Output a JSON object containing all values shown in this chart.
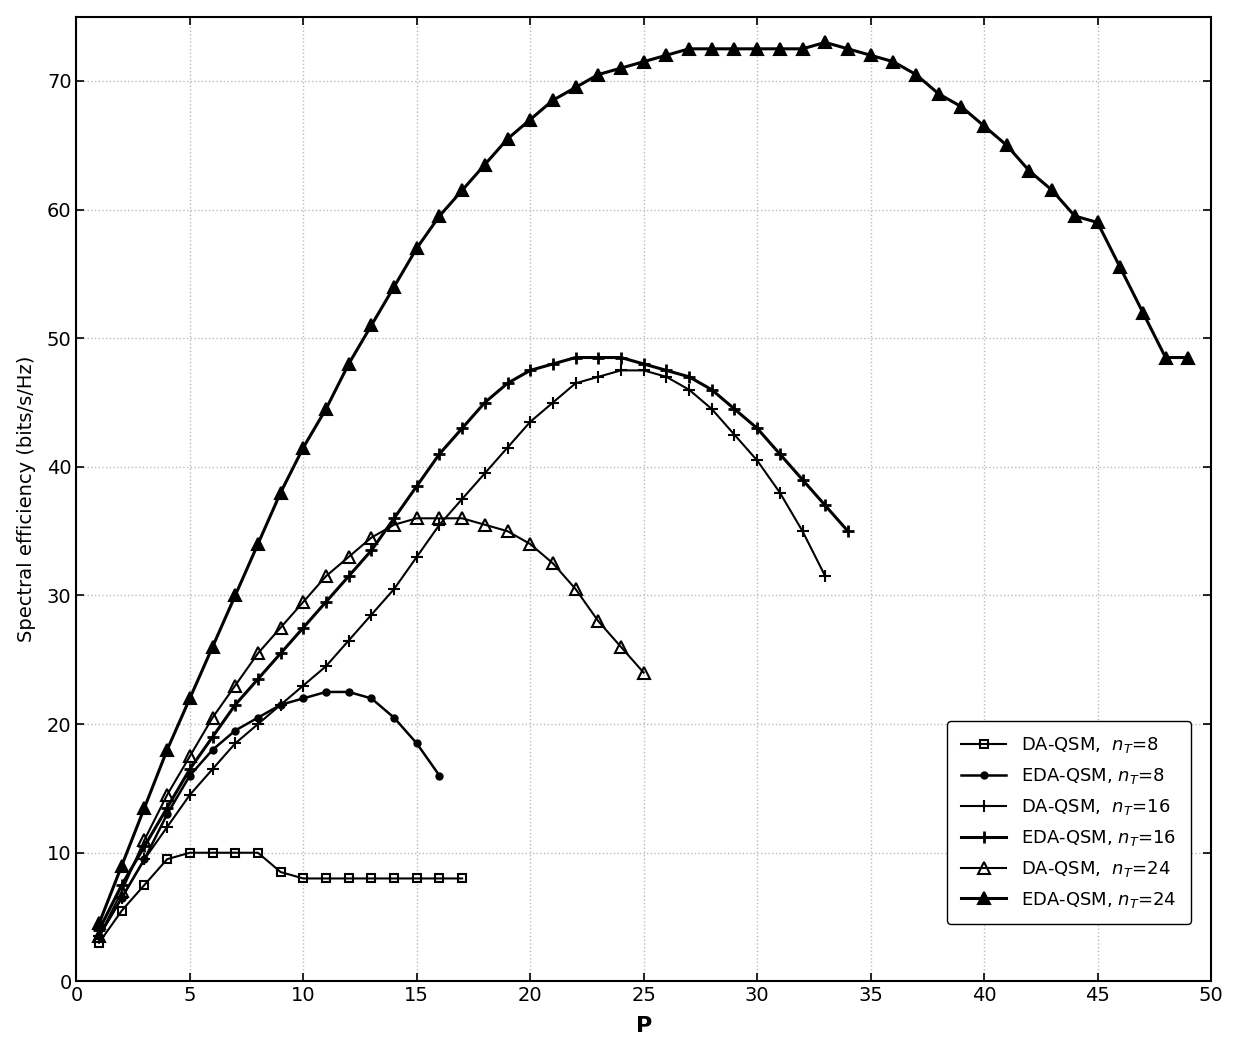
{
  "ylabel": "Spectral efficiency (bits/s/Hz)",
  "xlabel": "P",
  "xlim": [
    0,
    50
  ],
  "ylim": [
    0,
    75
  ],
  "xticks": [
    0,
    5,
    10,
    15,
    20,
    25,
    30,
    35,
    40,
    45,
    50
  ],
  "yticks": [
    0,
    10,
    20,
    30,
    40,
    50,
    60,
    70
  ],
  "grid_color": "#bbbbbb",
  "background_color": "#ffffff",
  "series": [
    {
      "label": "DA-QSM,  $n_T$=8",
      "marker": "s",
      "markersize": 6,
      "linewidth": 1.5,
      "color": "#000000",
      "fillstyle": "none",
      "markeredgewidth": 1.5,
      "x": [
        1,
        2,
        3,
        4,
        5,
        6,
        7,
        8,
        9,
        10,
        11,
        12,
        13,
        14,
        15,
        16,
        17
      ],
      "y": [
        3.0,
        5.5,
        7.5,
        9.5,
        10.0,
        10.0,
        10.0,
        10.0,
        8.5,
        8.0,
        8.0,
        8.0,
        8.0,
        8.0,
        8.0,
        8.0,
        8.0
      ]
    },
    {
      "label": "EDA-QSM, $n_T$=8",
      "marker": "o",
      "markersize": 5,
      "linewidth": 1.8,
      "color": "#000000",
      "fillstyle": "full",
      "markeredgewidth": 1.0,
      "x": [
        1,
        2,
        3,
        4,
        5,
        6,
        7,
        8,
        9,
        10,
        11,
        12,
        13,
        14,
        15,
        16
      ],
      "y": [
        3.5,
        6.5,
        9.5,
        13.0,
        16.0,
        18.0,
        19.5,
        20.5,
        21.5,
        22.0,
        22.5,
        22.5,
        22.0,
        20.5,
        18.5,
        16.0
      ]
    },
    {
      "label": "DA-QSM,  $n_T$=16",
      "marker": "+",
      "markersize": 8,
      "linewidth": 1.5,
      "color": "#000000",
      "fillstyle": "full",
      "markeredgewidth": 1.5,
      "x": [
        1,
        2,
        3,
        4,
        5,
        6,
        7,
        8,
        9,
        10,
        11,
        12,
        13,
        14,
        15,
        16,
        17,
        18,
        19,
        20,
        21,
        22,
        23,
        24,
        25,
        26,
        27,
        28,
        29,
        30,
        31,
        32,
        33
      ],
      "y": [
        3.5,
        6.5,
        9.5,
        12.0,
        14.5,
        16.5,
        18.5,
        20.0,
        21.5,
        23.0,
        24.5,
        26.5,
        28.5,
        30.5,
        33.0,
        35.5,
        37.5,
        39.5,
        41.5,
        43.5,
        45.0,
        46.5,
        47.0,
        47.5,
        47.5,
        47.0,
        46.0,
        44.5,
        42.5,
        40.5,
        38.0,
        35.0,
        31.5
      ]
    },
    {
      "label": "EDA-QSM, $n_T$=16",
      "marker": "+",
      "markersize": 8,
      "linewidth": 2.2,
      "color": "#000000",
      "fillstyle": "full",
      "markeredgewidth": 2.0,
      "x": [
        1,
        2,
        3,
        4,
        5,
        6,
        7,
        8,
        9,
        10,
        11,
        12,
        13,
        14,
        15,
        16,
        17,
        18,
        19,
        20,
        21,
        22,
        23,
        24,
        25,
        26,
        27,
        28,
        29,
        30,
        31,
        32,
        33,
        34
      ],
      "y": [
        4.0,
        7.5,
        10.5,
        13.5,
        16.5,
        19.0,
        21.5,
        23.5,
        25.5,
        27.5,
        29.5,
        31.5,
        33.5,
        36.0,
        38.5,
        41.0,
        43.0,
        45.0,
        46.5,
        47.5,
        48.0,
        48.5,
        48.5,
        48.5,
        48.0,
        47.5,
        47.0,
        46.0,
        44.5,
        43.0,
        41.0,
        39.0,
        37.0,
        35.0
      ]
    },
    {
      "label": "DA-QSM,  $n_T$=24",
      "marker": "^",
      "markersize": 8,
      "linewidth": 1.5,
      "color": "#000000",
      "fillstyle": "none",
      "markeredgewidth": 1.5,
      "x": [
        1,
        2,
        3,
        4,
        5,
        6,
        7,
        8,
        9,
        10,
        11,
        12,
        13,
        14,
        15,
        16,
        17,
        18,
        19,
        20,
        21,
        22,
        23,
        24,
        25
      ],
      "y": [
        3.5,
        7.0,
        11.0,
        14.5,
        17.5,
        20.5,
        23.0,
        25.5,
        27.5,
        29.5,
        31.5,
        33.0,
        34.5,
        35.5,
        36.0,
        36.0,
        36.0,
        35.5,
        35.0,
        34.0,
        32.5,
        30.5,
        28.0,
        26.0,
        24.0
      ]
    },
    {
      "label": "EDA-QSM, $n_T$=24",
      "marker": "^",
      "markersize": 8,
      "linewidth": 2.2,
      "color": "#000000",
      "fillstyle": "full",
      "markeredgewidth": 1.5,
      "x": [
        1,
        2,
        3,
        4,
        5,
        6,
        7,
        8,
        9,
        10,
        11,
        12,
        13,
        14,
        15,
        16,
        17,
        18,
        19,
        20,
        21,
        22,
        23,
        24,
        25,
        26,
        27,
        28,
        29,
        30,
        31,
        32,
        33,
        34,
        35,
        36,
        37,
        38,
        39,
        40,
        41,
        42,
        43,
        44,
        45,
        46,
        47,
        48,
        49
      ],
      "y": [
        4.5,
        9.0,
        13.5,
        18.0,
        22.0,
        26.0,
        30.0,
        34.0,
        38.0,
        41.5,
        44.5,
        48.0,
        51.0,
        54.0,
        57.0,
        59.5,
        61.5,
        63.5,
        65.5,
        67.0,
        68.5,
        69.5,
        70.5,
        71.0,
        71.5,
        72.0,
        72.5,
        72.5,
        72.5,
        72.5,
        72.5,
        72.5,
        73.0,
        72.5,
        72.0,
        71.5,
        70.5,
        69.0,
        68.0,
        66.5,
        65.0,
        63.0,
        61.5,
        59.5,
        59.0,
        55.5,
        52.0,
        48.5,
        48.5
      ]
    }
  ]
}
